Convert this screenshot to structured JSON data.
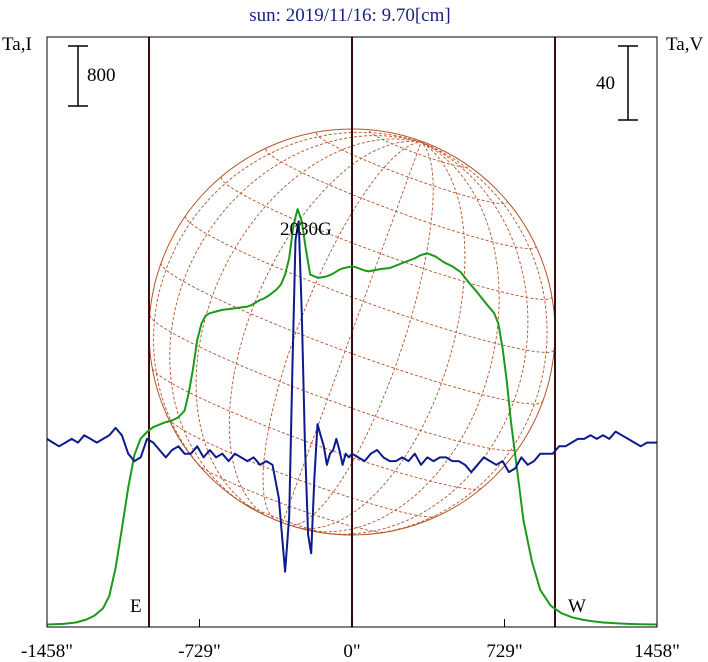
{
  "chart_data": {
    "type": "line",
    "title": "sun: 2019/11/16: 9.70[cm]",
    "left_axis_label": "Ta,I",
    "right_axis_label": "Ta,V",
    "left_scale_bar": "800",
    "right_scale_bar": "40",
    "x_ticks": [
      {
        "value": -1458,
        "label": "-1458\""
      },
      {
        "value": -729,
        "label": "-729\""
      },
      {
        "value": 0,
        "label": "0\""
      },
      {
        "value": 729,
        "label": "729\""
      },
      {
        "value": 1458,
        "label": "1458\""
      }
    ],
    "xlim": [
      -1458,
      1458
    ],
    "vertical_lines": [
      -729,
      0,
      729
    ],
    "limb_labels": {
      "east": "E",
      "west": "W"
    },
    "annotation": "2030G",
    "colors": {
      "I": "#1a9a1a",
      "V": "#0d1a8c",
      "disk": "#b5532a",
      "frame": "#000000",
      "title": "#1a237e"
    },
    "series": [
      {
        "key": "I",
        "x": [
          -1458,
          -1380,
          -1320,
          -1270,
          -1230,
          -1190,
          -1160,
          -1130,
          -1100,
          -1070,
          -1040,
          -1010,
          -980,
          -950,
          -920,
          -890,
          -860,
          -830,
          -800,
          -780,
          -760,
          -740,
          -720,
          -700,
          -680,
          -650,
          -620,
          -590,
          -560,
          -530,
          -500,
          -480,
          -460,
          -440,
          -420,
          -400,
          -380,
          -360,
          -340,
          -320,
          -300,
          -280,
          -260,
          -240,
          -220,
          -200,
          -180,
          -160,
          -140,
          -120,
          -100,
          -80,
          -60,
          -40,
          -20,
          0,
          20,
          40,
          60,
          80,
          100,
          140,
          180,
          220,
          260,
          300,
          330,
          360,
          400,
          440,
          480,
          520,
          560,
          600,
          640,
          680,
          700,
          720,
          740,
          760,
          790,
          820,
          860,
          900,
          950,
          1000,
          1050,
          1100,
          1150,
          1200,
          1260,
          1320,
          1380,
          1458
        ],
        "y": [
          30,
          38,
          55,
          90,
          140,
          230,
          380,
          720,
          1200,
          1700,
          2100,
          2300,
          2380,
          2440,
          2470,
          2500,
          2520,
          2560,
          2640,
          2860,
          3150,
          3500,
          3700,
          3800,
          3830,
          3850,
          3870,
          3880,
          3890,
          3900,
          3910,
          3930,
          3960,
          3990,
          4010,
          4040,
          4080,
          4120,
          4180,
          4300,
          4500,
          4900,
          5100,
          4950,
          4600,
          4300,
          4280,
          4260,
          4270,
          4280,
          4300,
          4330,
          4360,
          4380,
          4390,
          4400,
          4390,
          4370,
          4350,
          4340,
          4350,
          4370,
          4380,
          4420,
          4460,
          4500,
          4540,
          4560,
          4520,
          4450,
          4400,
          4330,
          4200,
          4080,
          3950,
          3830,
          3700,
          3400,
          3000,
          2500,
          1900,
          1300,
          800,
          450,
          260,
          170,
          120,
          90,
          70,
          55,
          45,
          38,
          33,
          30
        ]
      },
      {
        "key": "V",
        "x": [
          -1458,
          -1430,
          -1400,
          -1370,
          -1340,
          -1310,
          -1280,
          -1250,
          -1220,
          -1190,
          -1160,
          -1130,
          -1100,
          -1070,
          -1040,
          -1010,
          -980,
          -950,
          -920,
          -890,
          -860,
          -830,
          -800,
          -770,
          -740,
          -710,
          -680,
          -650,
          -620,
          -590,
          -560,
          -530,
          -500,
          -470,
          -440,
          -410,
          -380,
          -350,
          -320,
          -300,
          -285,
          -270,
          -255,
          -240,
          -225,
          -210,
          -195,
          -180,
          -165,
          -150,
          -135,
          -120,
          -105,
          -90,
          -75,
          -60,
          -45,
          -30,
          -15,
          0,
          30,
          60,
          90,
          120,
          150,
          180,
          210,
          240,
          270,
          300,
          330,
          360,
          390,
          420,
          450,
          480,
          510,
          540,
          570,
          600,
          630,
          660,
          690,
          720,
          750,
          780,
          810,
          840,
          870,
          900,
          930,
          960,
          990,
          1020,
          1050,
          1080,
          1110,
          1140,
          1170,
          1200,
          1230,
          1260,
          1290,
          1320,
          1350,
          1380,
          1410,
          1458
        ],
        "y": [
          1,
          0,
          -1,
          0,
          1,
          0,
          2,
          1,
          0,
          1,
          2,
          4,
          2,
          -3,
          -5,
          -4,
          1,
          0,
          -2,
          -4,
          -2,
          -1,
          -3,
          -3,
          -1,
          -4,
          -2,
          -4,
          -3,
          -5,
          -3,
          -4,
          -5,
          -4,
          -6,
          -5,
          -6,
          -15,
          -35,
          -20,
          20,
          55,
          60,
          35,
          0,
          -25,
          -30,
          -10,
          5,
          2,
          -1,
          -6,
          -3,
          -2,
          1,
          -2,
          -6,
          -3,
          -4,
          -3,
          -4,
          -5,
          -3,
          -2,
          -4,
          -5,
          -5,
          -4,
          -5,
          -3,
          -6,
          -4,
          -5,
          -4,
          -4,
          -5,
          -5,
          -6,
          -8,
          -6,
          -4,
          -5,
          -6,
          -5,
          -8,
          -7,
          -4,
          -6,
          -5,
          -3,
          -3,
          -3,
          -1,
          -1,
          0,
          1,
          1,
          2,
          1,
          2,
          1,
          3,
          2,
          1,
          0,
          -1,
          0,
          0
        ]
      }
    ],
    "left_axis_range": [
      0,
      7200
    ],
    "right_axis_range": [
      -50,
      110
    ]
  }
}
